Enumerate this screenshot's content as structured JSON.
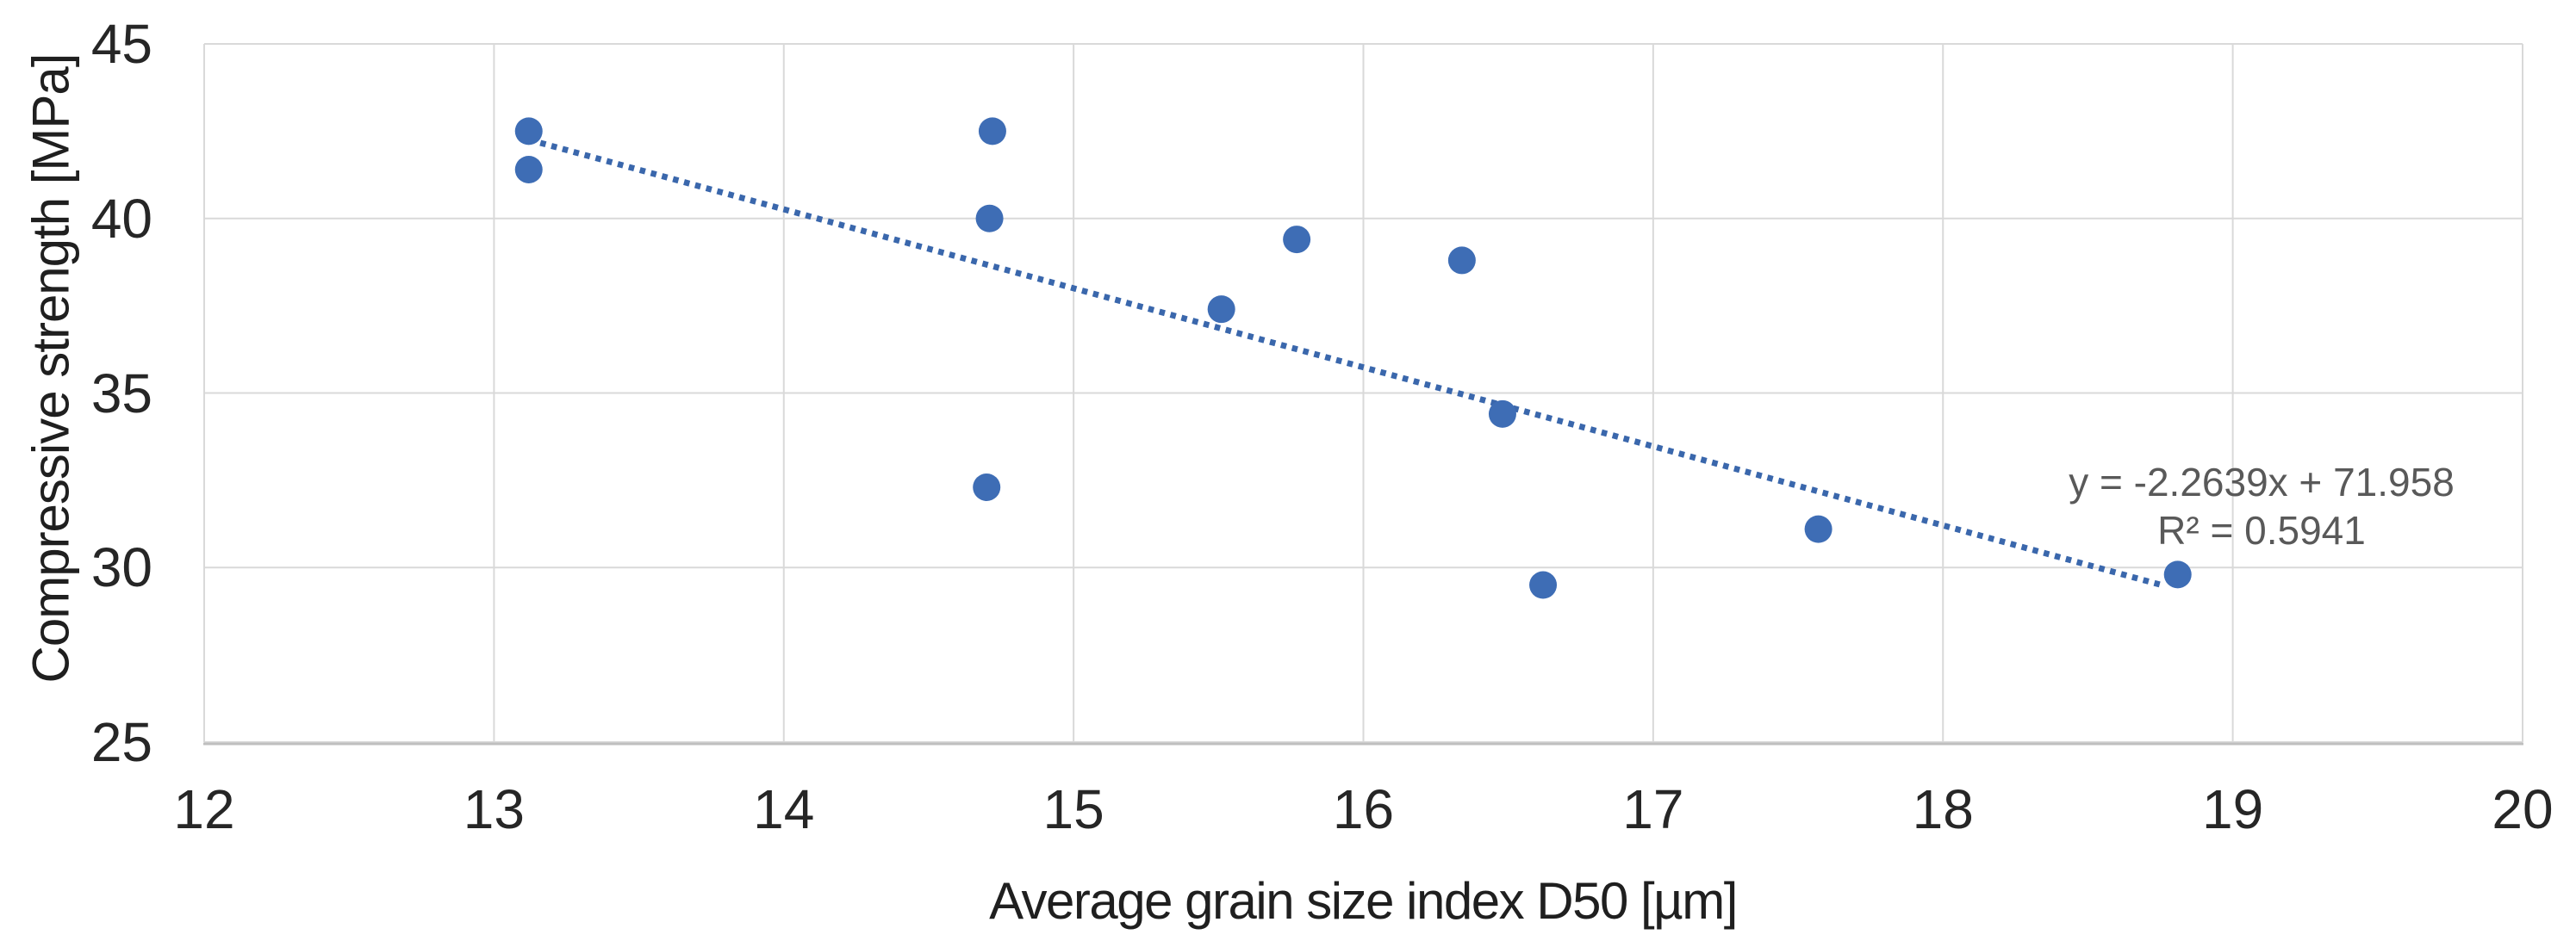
{
  "chart_data": {
    "type": "scatter",
    "title": "",
    "xlabel": "Average grain size index D50 [µm]",
    "ylabel": "Compressive strength [MPa]",
    "xlim": [
      12,
      20
    ],
    "ylim": [
      25,
      45
    ],
    "x_ticks": [
      12,
      13,
      14,
      15,
      16,
      17,
      18,
      19,
      20
    ],
    "y_ticks": [
      25,
      30,
      35,
      40,
      45
    ],
    "grid": true,
    "legend": "none",
    "points": [
      [
        13.12,
        42.5
      ],
      [
        13.12,
        41.4
      ],
      [
        14.72,
        42.5
      ],
      [
        14.71,
        40.0
      ],
      [
        14.7,
        32.3
      ],
      [
        15.51,
        37.4
      ],
      [
        15.77,
        39.4
      ],
      [
        16.34,
        38.8
      ],
      [
        16.48,
        34.4
      ],
      [
        16.62,
        29.5
      ],
      [
        17.57,
        31.1
      ],
      [
        18.81,
        29.8
      ]
    ],
    "trendline": {
      "style": "dotted",
      "slope": -2.2639,
      "intercept": 71.958,
      "x_start": 13.16,
      "x_end": 18.76
    },
    "annotation": {
      "line1": "y = -2.2639x + 71.958",
      "line2": "R² = 0.5941"
    },
    "colors": {
      "marker": "#3E6DB5",
      "trendline": "#3A67AC",
      "gridline": "#D9D9D9",
      "axis_line": "#BFBFBF",
      "tick_text": "#262626",
      "title_text": "#1F1F1F",
      "annotation_text": "#595959",
      "background": "#FFFFFF"
    }
  }
}
